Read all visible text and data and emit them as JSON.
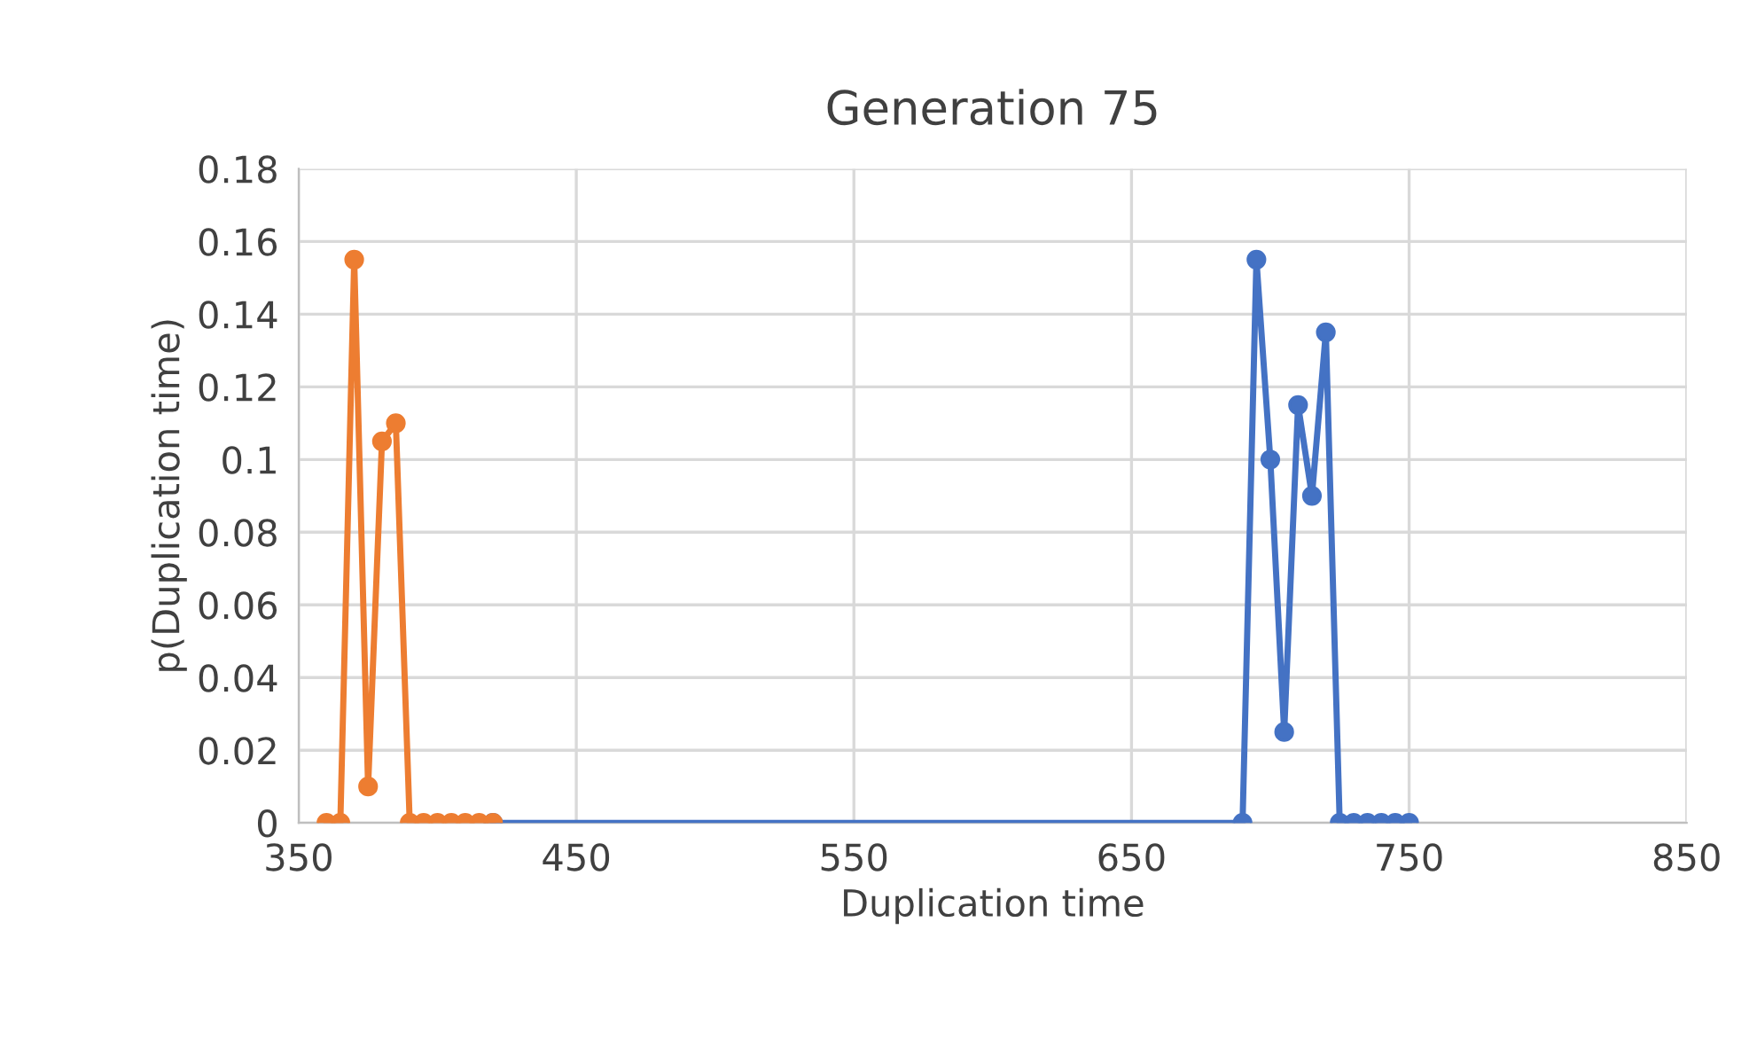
{
  "chart_data": {
    "type": "line",
    "title": "Generation 75",
    "xlabel": "Duplication time",
    "ylabel": "p(Duplication time)",
    "series": [
      {
        "color": "#4472c4",
        "x": [
          420,
          690,
          695,
          700,
          705,
          710,
          715,
          720,
          725,
          730,
          735,
          740,
          745,
          750
        ],
        "values": [
          0,
          0,
          0.155,
          0.1,
          0.025,
          0.115,
          0.09,
          0.135,
          0,
          0,
          0,
          0,
          0,
          0
        ]
      },
      {
        "color": "#ed7d31",
        "x": [
          360,
          365,
          370,
          375,
          380,
          385,
          390,
          395,
          400,
          405,
          410,
          415,
          420
        ],
        "values": [
          0,
          0,
          0.155,
          0.01,
          0.105,
          0.11,
          0,
          0,
          0,
          0,
          0,
          0,
          0
        ]
      }
    ],
    "xlim": [
      350,
      850
    ],
    "xticks": [
      350,
      450,
      550,
      650,
      750,
      850
    ],
    "ylim": [
      0,
      0.18
    ],
    "yticks": [
      {
        "value": 0,
        "label": "0"
      },
      0.02,
      0.04,
      0.06,
      0.08,
      {
        "value": 0.1,
        "label": "0.1"
      },
      0.12,
      0.14,
      0.16,
      0.18
    ],
    "grid": true,
    "marker": "circle",
    "line_style": "solid",
    "legend": false
  }
}
